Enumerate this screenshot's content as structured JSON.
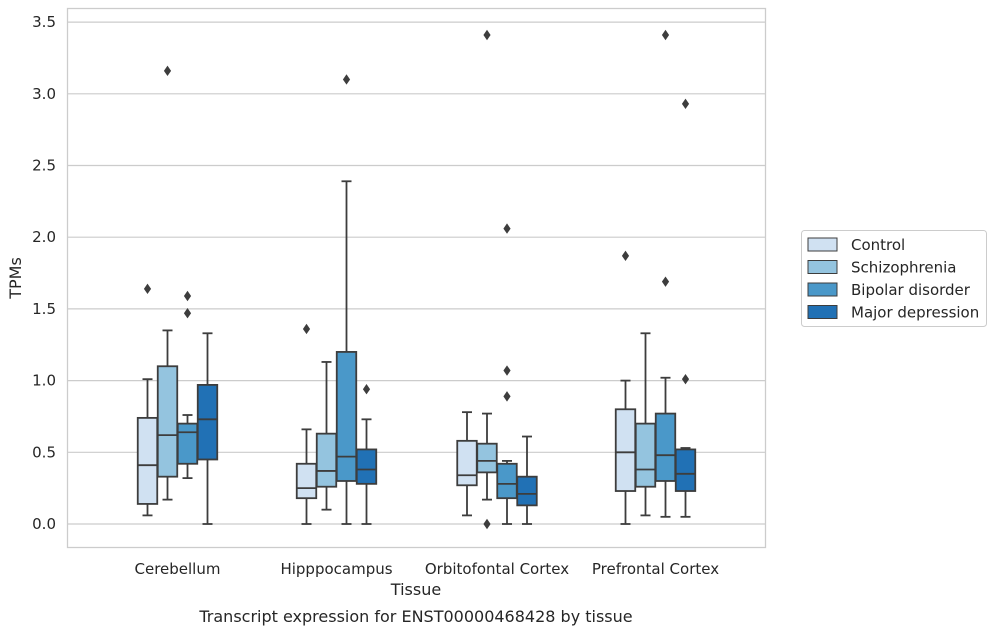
{
  "chart_data": {
    "type": "box",
    "caption": "Transcript expression for ENST00000468428 by tissue",
    "xlabel": "Tissue",
    "ylabel": "TPMs",
    "ylim": [
      -0.17,
      3.58
    ],
    "yticks": [
      "0.0",
      "0.5",
      "1.0",
      "1.5",
      "2.0",
      "2.5",
      "3.0",
      "3.5"
    ],
    "grid": "horizontal",
    "legend_position": "right",
    "categories": [
      "Cerebellum",
      "Hipppocampus",
      "Orbitofontal Cortex",
      "Prefrontal Cortex"
    ],
    "series": [
      {
        "name": "Control",
        "color": "#d0e1f2",
        "boxes": [
          {
            "whisker_low": 0.06,
            "q1": 0.14,
            "median": 0.41,
            "q3": 0.74,
            "whisker_high": 1.01,
            "outliers": [
              1.64
            ]
          },
          {
            "whisker_low": 0.0,
            "q1": 0.18,
            "median": 0.25,
            "q3": 0.42,
            "whisker_high": 0.66,
            "outliers": [
              1.36
            ]
          },
          {
            "whisker_low": 0.06,
            "q1": 0.27,
            "median": 0.34,
            "q3": 0.58,
            "whisker_high": 0.78,
            "outliers": []
          },
          {
            "whisker_low": 0.0,
            "q1": 0.23,
            "median": 0.5,
            "q3": 0.8,
            "whisker_high": 1.0,
            "outliers": [
              1.87
            ]
          }
        ]
      },
      {
        "name": "Schizophrenia",
        "color": "#94c4df",
        "boxes": [
          {
            "whisker_low": 0.17,
            "q1": 0.33,
            "median": 0.62,
            "q3": 1.1,
            "whisker_high": 1.35,
            "outliers": [
              3.16
            ]
          },
          {
            "whisker_low": 0.1,
            "q1": 0.26,
            "median": 0.37,
            "q3": 0.63,
            "whisker_high": 1.13,
            "outliers": []
          },
          {
            "whisker_low": 0.17,
            "q1": 0.36,
            "median": 0.44,
            "q3": 0.56,
            "whisker_high": 0.77,
            "outliers": [
              0.0,
              3.41
            ]
          },
          {
            "whisker_low": 0.06,
            "q1": 0.26,
            "median": 0.38,
            "q3": 0.7,
            "whisker_high": 1.33,
            "outliers": []
          }
        ]
      },
      {
        "name": "Bipolar disorder",
        "color": "#4a98c9",
        "boxes": [
          {
            "whisker_low": 0.32,
            "q1": 0.42,
            "median": 0.64,
            "q3": 0.7,
            "whisker_high": 0.76,
            "outliers": [
              1.47,
              1.59
            ]
          },
          {
            "whisker_low": 0.0,
            "q1": 0.3,
            "median": 0.47,
            "q3": 1.2,
            "whisker_high": 2.39,
            "outliers": [
              3.1
            ]
          },
          {
            "whisker_low": 0.0,
            "q1": 0.18,
            "median": 0.28,
            "q3": 0.42,
            "whisker_high": 0.44,
            "outliers": [
              0.89,
              1.07,
              2.06
            ]
          },
          {
            "whisker_low": 0.05,
            "q1": 0.3,
            "median": 0.48,
            "q3": 0.77,
            "whisker_high": 1.02,
            "outliers": [
              1.69,
              3.41
            ]
          }
        ]
      },
      {
        "name": "Major depression",
        "color": "#2171b5",
        "boxes": [
          {
            "whisker_low": 0.0,
            "q1": 0.45,
            "median": 0.73,
            "q3": 0.97,
            "whisker_high": 1.33,
            "outliers": []
          },
          {
            "whisker_low": 0.0,
            "q1": 0.28,
            "median": 0.38,
            "q3": 0.52,
            "whisker_high": 0.73,
            "outliers": [
              0.94
            ]
          },
          {
            "whisker_low": 0.0,
            "q1": 0.13,
            "median": 0.21,
            "q3": 0.33,
            "whisker_high": 0.61,
            "outliers": []
          },
          {
            "whisker_low": 0.05,
            "q1": 0.23,
            "median": 0.35,
            "q3": 0.52,
            "whisker_high": 0.53,
            "outliers": [
              1.01,
              2.93
            ]
          }
        ]
      }
    ]
  }
}
